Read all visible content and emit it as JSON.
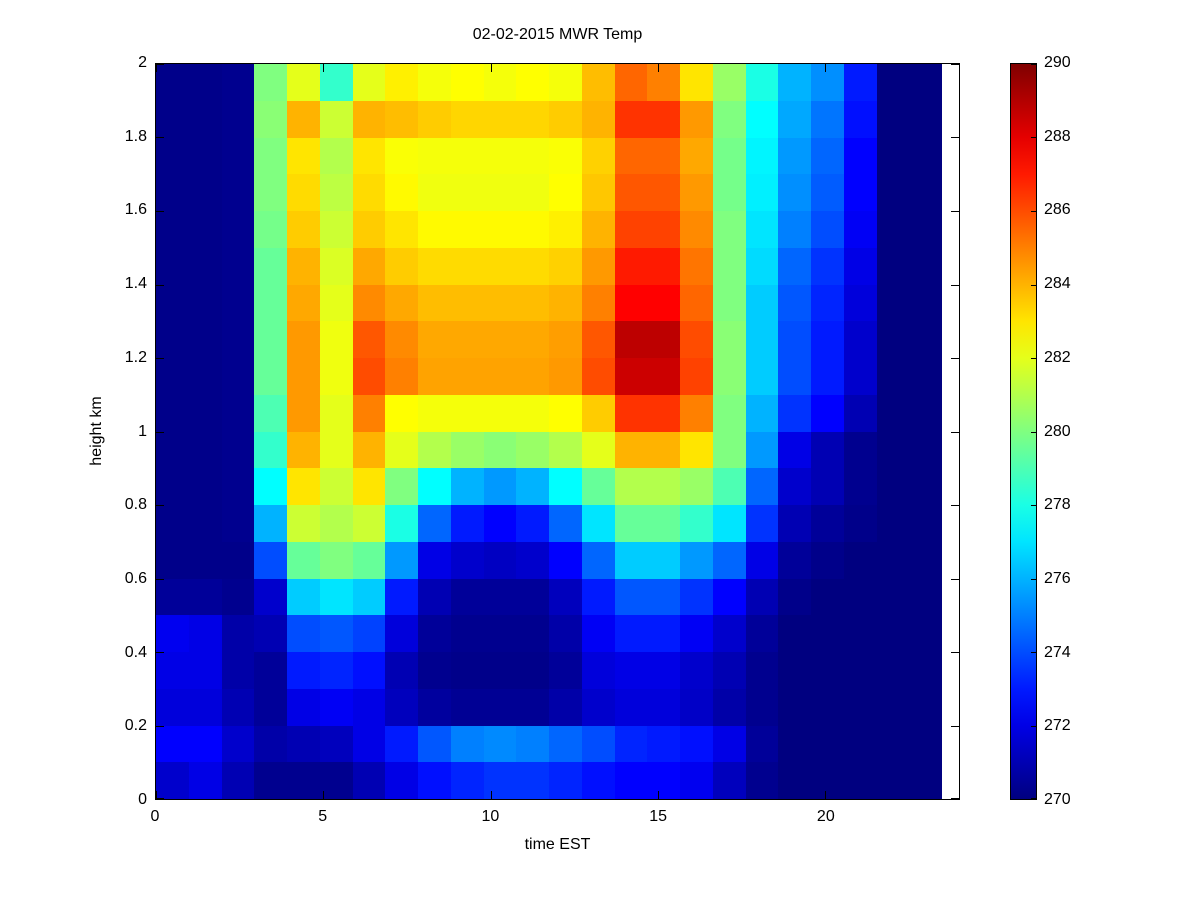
{
  "chart_data": {
    "type": "heatmap",
    "title": "02-02-2015 MWR Temp",
    "xlabel": "time EST",
    "ylabel": "height km",
    "xlim": [
      0,
      24
    ],
    "ylim": [
      0,
      2
    ],
    "x_ticks": [
      0,
      5,
      10,
      15,
      20
    ],
    "y_ticks": [
      0,
      0.2,
      0.4,
      0.6,
      0.8,
      1,
      1.2,
      1.4,
      1.6,
      1.8,
      2
    ],
    "colormap": "jet",
    "grid_lines": "off",
    "colorbar": {
      "position": "right",
      "min": 270,
      "max": 290,
      "ticks": [
        270,
        272,
        274,
        276,
        278,
        280,
        282,
        284,
        286,
        288,
        290
      ]
    },
    "grid": {
      "x_start": 0,
      "x_end": 23.5,
      "n_cols": 24,
      "y_start": 0,
      "y_end": 2,
      "n_rows": 20,
      "rows_order": "bottom_to_top",
      "no_data_white_gap_x": [
        23.5,
        24
      ],
      "values": [
        [
          271.5,
          272,
          271,
          270.3,
          270.3,
          270.3,
          271,
          272,
          272.8,
          273.2,
          273.5,
          273.5,
          273.2,
          272.8,
          272.5,
          272.5,
          272.2,
          271.2,
          270.3,
          270,
          270,
          270,
          270,
          270
        ],
        [
          272.5,
          272.5,
          271.5,
          270.8,
          271,
          271.2,
          272,
          273,
          274.2,
          275,
          275.2,
          275,
          274.5,
          274,
          273.2,
          273,
          272.8,
          272,
          270.5,
          270,
          270,
          270,
          270,
          270
        ],
        [
          271.8,
          271.8,
          271,
          270.5,
          272,
          272.3,
          272,
          271.2,
          270.6,
          270.4,
          270.4,
          270.4,
          270.8,
          271.5,
          271.8,
          271.8,
          271.4,
          270.8,
          270.3,
          270,
          270,
          270,
          270,
          270
        ],
        [
          272,
          272,
          270.8,
          270.5,
          273,
          273.2,
          272.8,
          271,
          270.3,
          270.2,
          270.2,
          270.2,
          270.5,
          271.8,
          272,
          272,
          271.5,
          271,
          270.3,
          270,
          270,
          270,
          270,
          270
        ],
        [
          272.2,
          272,
          270.8,
          271,
          274,
          274.2,
          273.8,
          271.8,
          270.5,
          270.3,
          270.3,
          270.3,
          270.8,
          272.3,
          273,
          273,
          272.3,
          271.5,
          270.5,
          270,
          270,
          270,
          270,
          270
        ],
        [
          270.5,
          270.5,
          270.3,
          271.5,
          276.5,
          277,
          276.5,
          273,
          271,
          270.5,
          270.5,
          270.5,
          271.2,
          273,
          274.2,
          274.2,
          273.5,
          272.5,
          271,
          270.2,
          270,
          270,
          270,
          270
        ],
        [
          270.2,
          270.2,
          270.2,
          274,
          279.5,
          280,
          279.5,
          275.5,
          272,
          271.5,
          271.3,
          271.5,
          272.5,
          274.5,
          276.5,
          276.5,
          275.5,
          274.5,
          272,
          270.5,
          270.2,
          270,
          270,
          270
        ],
        [
          270.2,
          270.2,
          270.3,
          276,
          281.5,
          281,
          281.5,
          278,
          274.5,
          273,
          272.5,
          273,
          274.5,
          277,
          279.5,
          279.5,
          278.5,
          277,
          273.5,
          271,
          270.5,
          270.2,
          270,
          270
        ],
        [
          270.2,
          270.2,
          270.3,
          277.5,
          283,
          281.5,
          283,
          280,
          277.5,
          276,
          275.5,
          276,
          277.5,
          279.5,
          281,
          281,
          280.5,
          279,
          274.5,
          271.5,
          271,
          270.3,
          270,
          270
        ],
        [
          270.2,
          270.2,
          270.3,
          278.5,
          284,
          282,
          284,
          282,
          281,
          280.5,
          280.2,
          280.5,
          281,
          282,
          284,
          284,
          283,
          280,
          275.5,
          272,
          271,
          270.3,
          270,
          270
        ],
        [
          270.2,
          270.2,
          270.3,
          279,
          284.5,
          282,
          285,
          282.5,
          282.3,
          282.3,
          282.3,
          282.3,
          282.5,
          283.5,
          286.5,
          286.5,
          285,
          280,
          276,
          273.5,
          272.5,
          271,
          270,
          270
        ],
        [
          270.2,
          270.2,
          270.3,
          279.5,
          284.5,
          282.2,
          286,
          285,
          284.3,
          284.3,
          284.3,
          284.3,
          284.5,
          286,
          288.5,
          288.5,
          286.2,
          280.2,
          276.5,
          274,
          273,
          271.5,
          270,
          270
        ],
        [
          270.2,
          270.2,
          270.3,
          279.5,
          284.5,
          282.2,
          285.8,
          284.8,
          284.2,
          284.2,
          284.2,
          284.2,
          284.4,
          285.8,
          288.8,
          288.8,
          286,
          280.2,
          276.5,
          274,
          273,
          271.5,
          270,
          270
        ],
        [
          270.2,
          270.2,
          270.3,
          279.5,
          284.2,
          282,
          284.8,
          284.2,
          283.8,
          283.8,
          283.8,
          283.8,
          284,
          285,
          287.5,
          287.5,
          285.5,
          280,
          276.5,
          274.2,
          273.2,
          271.8,
          270,
          270
        ],
        [
          270.2,
          270.2,
          270.3,
          279.5,
          284,
          281.8,
          284.2,
          283.5,
          283.2,
          283.2,
          283.2,
          283.2,
          283.4,
          284.5,
          287,
          287,
          285.2,
          280,
          276.8,
          274.5,
          273.5,
          272,
          270,
          270
        ],
        [
          270.2,
          270.2,
          270.3,
          279.8,
          283.5,
          281.5,
          283.5,
          283,
          282.6,
          282.6,
          282.6,
          282.6,
          282.8,
          284,
          286.2,
          286.2,
          284.8,
          280,
          277,
          275,
          274,
          272.3,
          270,
          270
        ],
        [
          270.2,
          270.2,
          270.3,
          280,
          283.2,
          281.2,
          283.2,
          282.6,
          282.2,
          282.2,
          282.2,
          282.2,
          282.5,
          283.6,
          285.8,
          285.8,
          284.5,
          279.8,
          277.2,
          275.3,
          274.3,
          272.5,
          270,
          270
        ],
        [
          270.2,
          270.2,
          270.3,
          280,
          283,
          281,
          283,
          282.4,
          282.3,
          282.3,
          282.3,
          282.3,
          282.4,
          283.4,
          285.5,
          285.5,
          284.2,
          279.8,
          277.3,
          275.5,
          274.5,
          272.5,
          270,
          270
        ],
        [
          270.2,
          270.2,
          270.3,
          280.2,
          284,
          281.5,
          284,
          283.8,
          283.5,
          283.3,
          283.3,
          283.3,
          283.5,
          284,
          286.5,
          286.5,
          284.5,
          280,
          277.5,
          275.8,
          274.8,
          272.8,
          270,
          270
        ],
        [
          270.2,
          270.2,
          270.3,
          280,
          282,
          278.5,
          282,
          282.8,
          282.3,
          282.5,
          282.3,
          282.5,
          282.3,
          283.8,
          285.5,
          285,
          283,
          280.5,
          278,
          276,
          275.3,
          273,
          270,
          270
        ]
      ]
    }
  }
}
